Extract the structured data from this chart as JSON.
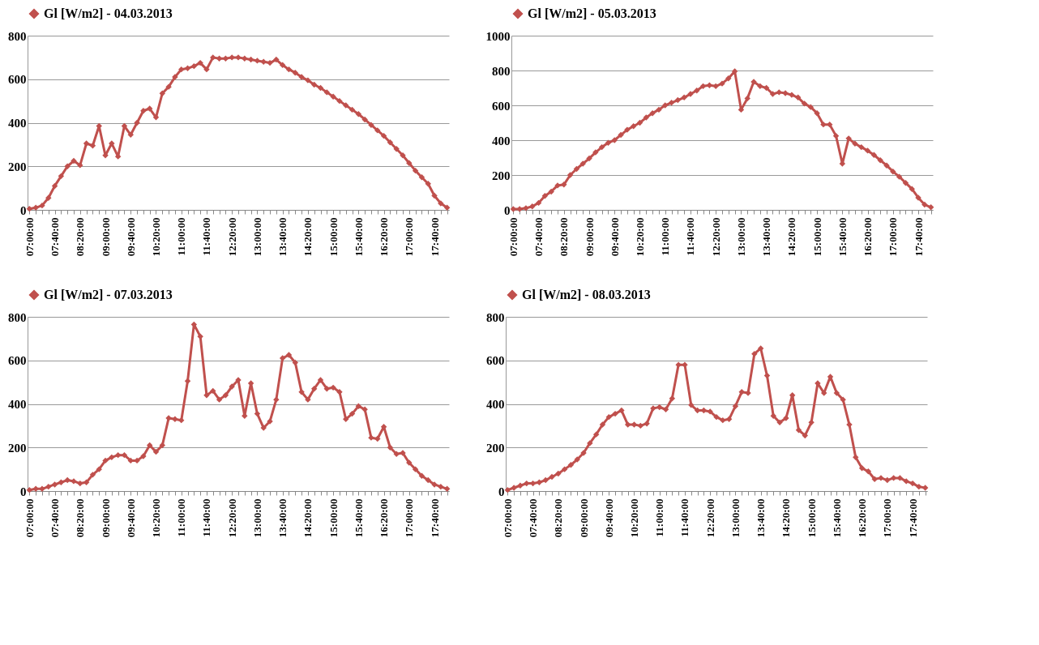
{
  "chart_data": [
    {
      "type": "line",
      "categories": [
        "07:00:00",
        null,
        null,
        null,
        "07:40:00",
        null,
        null,
        null,
        "08:20:00",
        null,
        null,
        null,
        "09:00:00",
        null,
        null,
        null,
        "09:40:00",
        null,
        null,
        null,
        "10:20:00",
        null,
        null,
        null,
        "11:00:00",
        null,
        null,
        null,
        "11:40:00",
        null,
        null,
        null,
        "12:20:00",
        null,
        null,
        null,
        "13:00:00",
        null,
        null,
        null,
        "13:40:00",
        null,
        null,
        null,
        "14:20:00",
        null,
        null,
        null,
        "15:00:00",
        null,
        null,
        null,
        "15:40:00",
        null,
        null,
        null,
        "16:20:00",
        null,
        null,
        null,
        "17:00:00",
        null,
        null,
        null,
        "17:40:00",
        null,
        null
      ],
      "series": [
        {
          "name": "Gl [W/m2] - 04.03.2013",
          "color": "#c0504d",
          "values": [
            5,
            10,
            20,
            55,
            110,
            155,
            200,
            225,
            205,
            305,
            295,
            385,
            250,
            305,
            245,
            385,
            345,
            400,
            455,
            465,
            425,
            535,
            565,
            610,
            645,
            650,
            660,
            675,
            645,
            700,
            695,
            695,
            700,
            700,
            695,
            690,
            685,
            680,
            675,
            690,
            665,
            645,
            630,
            610,
            595,
            575,
            560,
            540,
            520,
            500,
            480,
            460,
            440,
            415,
            390,
            365,
            340,
            310,
            280,
            250,
            215,
            180,
            150,
            120,
            65,
            30,
            10
          ]
        }
      ],
      "ylim": [
        0,
        800
      ],
      "yticks": [
        0,
        200,
        400,
        600,
        800
      ],
      "grid": "y",
      "legend": "top",
      "marker": "diamond"
    },
    {
      "type": "line",
      "categories": [
        "07:00:00",
        null,
        null,
        null,
        "07:40:00",
        null,
        null,
        null,
        "08:20:00",
        null,
        null,
        null,
        "09:00:00",
        null,
        null,
        null,
        "09:40:00",
        null,
        null,
        null,
        "10:20:00",
        null,
        null,
        null,
        "11:00:00",
        null,
        null,
        null,
        "11:40:00",
        null,
        null,
        null,
        "12:20:00",
        null,
        null,
        null,
        "13:00:00",
        null,
        null,
        null,
        "13:40:00",
        null,
        null,
        null,
        "14:20:00",
        null,
        null,
        null,
        "15:00:00",
        null,
        null,
        null,
        "15:40:00",
        null,
        null,
        null,
        "16:20:00",
        null,
        null,
        null,
        "17:00:00",
        null,
        null,
        null,
        "17:40:00",
        null,
        null
      ],
      "series": [
        {
          "name": "Gl [W/m2] - 05.03.2013",
          "color": "#c0504d",
          "values": [
            5,
            5,
            10,
            20,
            40,
            80,
            105,
            140,
            145,
            200,
            235,
            265,
            295,
            330,
            360,
            385,
            400,
            430,
            460,
            480,
            500,
            530,
            555,
            575,
            600,
            615,
            630,
            645,
            665,
            685,
            710,
            715,
            710,
            725,
            755,
            795,
            575,
            640,
            735,
            710,
            700,
            665,
            675,
            670,
            660,
            645,
            610,
            590,
            555,
            490,
            490,
            425,
            265,
            410,
            380,
            360,
            340,
            315,
            285,
            255,
            220,
            190,
            155,
            120,
            70,
            30,
            15
          ]
        }
      ],
      "ylim": [
        0,
        1000
      ],
      "yticks": [
        0,
        200,
        400,
        600,
        800,
        1000
      ],
      "grid": "y",
      "legend": "top",
      "marker": "diamond"
    },
    {
      "type": "line",
      "categories": [
        "07:00:00",
        null,
        null,
        null,
        "07:40:00",
        null,
        null,
        null,
        "08:20:00",
        null,
        null,
        null,
        "09:00:00",
        null,
        null,
        null,
        "09:40:00",
        null,
        null,
        null,
        "10:20:00",
        null,
        null,
        null,
        "11:00:00",
        null,
        null,
        null,
        "11:40:00",
        null,
        null,
        null,
        "12:20:00",
        null,
        null,
        null,
        "13:00:00",
        null,
        null,
        null,
        "13:40:00",
        null,
        null,
        null,
        "14:20:00",
        null,
        null,
        null,
        "15:00:00",
        null,
        null,
        null,
        "15:40:00",
        null,
        null,
        null,
        "16:20:00",
        null,
        null,
        null,
        "17:00:00",
        null,
        null,
        null,
        "17:40:00",
        null,
        null
      ],
      "series": [
        {
          "name": "Gl [W/m2] - 07.03.2013",
          "color": "#c0504d",
          "values": [
            5,
            10,
            10,
            20,
            30,
            40,
            50,
            45,
            35,
            40,
            75,
            100,
            140,
            155,
            165,
            165,
            140,
            140,
            160,
            210,
            180,
            210,
            335,
            330,
            325,
            505,
            765,
            710,
            440,
            460,
            420,
            440,
            480,
            510,
            345,
            495,
            355,
            290,
            320,
            420,
            610,
            625,
            590,
            455,
            420,
            470,
            510,
            470,
            475,
            455,
            330,
            355,
            390,
            375,
            245,
            240,
            295,
            200,
            170,
            175,
            130,
            100,
            70,
            50,
            30,
            20,
            10
          ]
        }
      ],
      "ylim": [
        0,
        800
      ],
      "yticks": [
        0,
        200,
        400,
        600,
        800
      ],
      "grid": "y",
      "legend": "top",
      "marker": "diamond"
    },
    {
      "type": "line",
      "categories": [
        "07:00:00",
        null,
        null,
        null,
        "07:40:00",
        null,
        null,
        null,
        "08:20:00",
        null,
        null,
        null,
        "09:00:00",
        null,
        null,
        null,
        "09:40:00",
        null,
        null,
        null,
        "10:20:00",
        null,
        null,
        null,
        "11:00:00",
        null,
        null,
        null,
        "11:40:00",
        null,
        null,
        null,
        "12:20:00",
        null,
        null,
        null,
        "13:00:00",
        null,
        null,
        null,
        "13:40:00",
        null,
        null,
        null,
        "14:20:00",
        null,
        null,
        null,
        "15:00:00",
        null,
        null,
        null,
        "15:40:00",
        null,
        null,
        null,
        "16:20:00",
        null,
        null,
        null,
        "17:00:00",
        null,
        null,
        null,
        "17:40:00",
        null,
        null
      ],
      "series": [
        {
          "name": "Gl [W/m2] - 08.03.2013",
          "color": "#c0504d",
          "values": [
            5,
            15,
            25,
            35,
            35,
            40,
            50,
            65,
            80,
            100,
            120,
            145,
            175,
            220,
            260,
            305,
            340,
            355,
            370,
            305,
            305,
            300,
            310,
            380,
            385,
            375,
            425,
            580,
            580,
            395,
            370,
            370,
            365,
            340,
            325,
            330,
            390,
            455,
            450,
            630,
            655,
            530,
            345,
            315,
            335,
            440,
            280,
            255,
            315,
            495,
            450,
            525,
            450,
            420,
            305,
            155,
            105,
            90,
            55,
            60,
            50,
            60,
            60,
            45,
            35,
            20,
            15
          ]
        }
      ],
      "ylim": [
        0,
        800
      ],
      "yticks": [
        0,
        200,
        400,
        600,
        800
      ],
      "grid": "y",
      "legend": "top",
      "marker": "diamond"
    }
  ]
}
